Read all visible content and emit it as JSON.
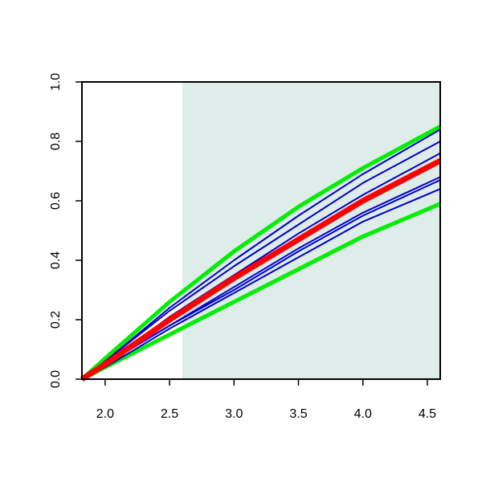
{
  "chart_data": {
    "type": "line",
    "x": [
      1.82,
      2.0,
      2.5,
      3.0,
      3.5,
      4.0,
      4.6
    ],
    "series": [
      {
        "color": "#00ee00",
        "width": 5,
        "values": [
          0,
          0.07,
          0.26,
          0.43,
          0.58,
          0.71,
          0.85
        ]
      },
      {
        "color": "#00ee00",
        "width": 5,
        "values": [
          0,
          0.04,
          0.15,
          0.26,
          0.37,
          0.48,
          0.59
        ]
      },
      {
        "color": "#0000cc",
        "width": 2,
        "values": [
          0,
          0.06,
          0.24,
          0.4,
          0.55,
          0.69,
          0.84
        ]
      },
      {
        "color": "#0000cc",
        "width": 2,
        "values": [
          0,
          0.06,
          0.23,
          0.38,
          0.52,
          0.66,
          0.8
        ]
      },
      {
        "color": "#0000cc",
        "width": 2,
        "values": [
          0,
          0.05,
          0.21,
          0.35,
          0.49,
          0.62,
          0.76
        ]
      },
      {
        "color": "#0000cc",
        "width": 2,
        "values": [
          0,
          0.05,
          0.18,
          0.31,
          0.44,
          0.56,
          0.68
        ]
      },
      {
        "color": "#0000cc",
        "width": 2,
        "values": [
          0,
          0.05,
          0.18,
          0.3,
          0.43,
          0.55,
          0.67
        ]
      },
      {
        "color": "#0000cc",
        "width": 2,
        "values": [
          0,
          0.04,
          0.17,
          0.29,
          0.41,
          0.53,
          0.64
        ]
      },
      {
        "color": "#ff0000",
        "width": 7,
        "values": [
          0,
          0.05,
          0.2,
          0.34,
          0.47,
          0.6,
          0.735
        ]
      }
    ],
    "shaded_region": {
      "xmin": 2.6,
      "xmax": 4.6,
      "color": "#deecea"
    },
    "xlim": [
      1.82,
      4.6
    ],
    "ylim": [
      0,
      1
    ],
    "xticks": [
      {
        "value": 2,
        "label": "2.0"
      },
      2.5,
      {
        "value": 3,
        "label": "3.0"
      },
      3.5,
      {
        "value": 4,
        "label": "4.0"
      },
      4.5
    ],
    "yticks": [
      {
        "value": 0,
        "label": "0.0"
      },
      0.2,
      0.4,
      0.6,
      0.8,
      {
        "value": 1,
        "label": "1.0"
      }
    ]
  }
}
